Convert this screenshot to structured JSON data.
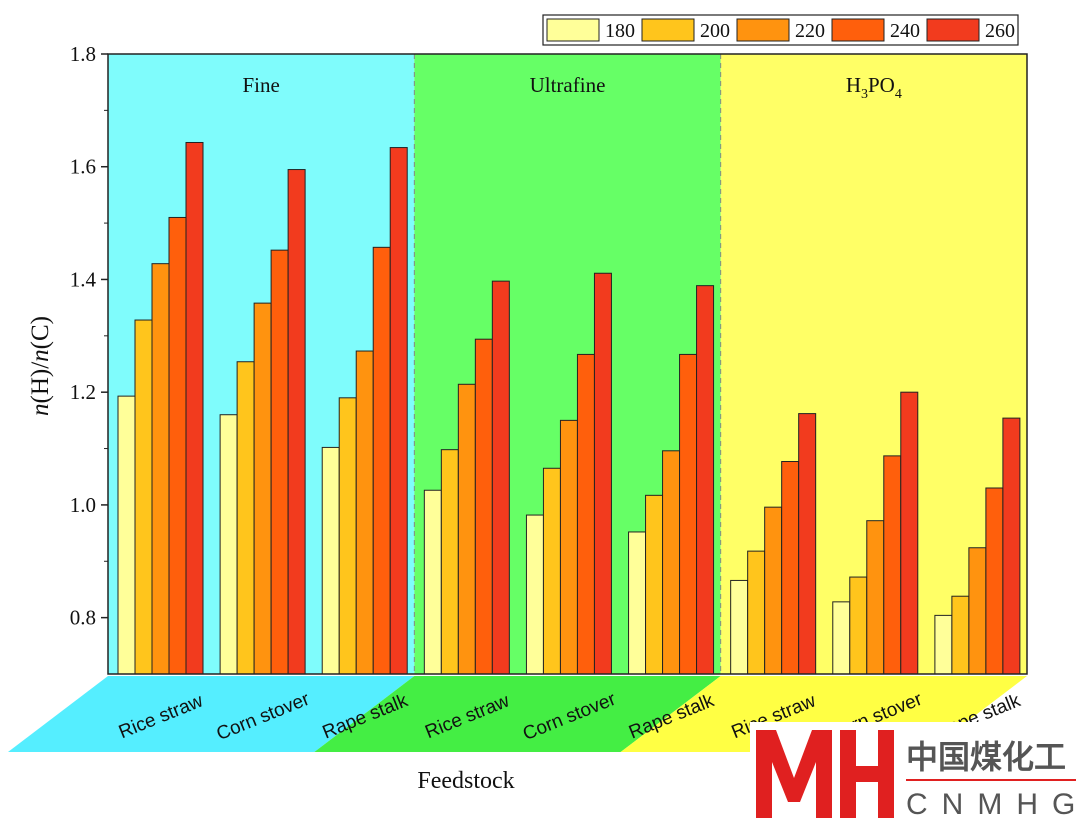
{
  "chart_data": {
    "type": "bar",
    "title": "",
    "xlabel": "Feedstock",
    "ylabel": "n(H)/n(C)",
    "ylabel_parts": {
      "n1": "n",
      "p1": "(H)/",
      "n2": "n",
      "p2": "(C)"
    },
    "ylim": [
      0.7,
      1.8
    ],
    "yticks": [
      "0.8",
      "1.0",
      "1.2",
      "1.4",
      "1.6",
      "1.8"
    ],
    "yticks_values": [
      0.8,
      1.0,
      1.2,
      1.4,
      1.6,
      1.8
    ],
    "legend_position": "top-right",
    "series": [
      {
        "name": "180",
        "color": "#ffff99"
      },
      {
        "name": "200",
        "color": "#ffc51c"
      },
      {
        "name": "220",
        "color": "#ff930f"
      },
      {
        "name": "240",
        "color": "#ff5f0c"
      },
      {
        "name": "260",
        "color": "#f23b1e"
      }
    ],
    "groups": [
      {
        "name": "Fine",
        "background": "#7ffcfc",
        "band": "#55eeff",
        "categories": [
          {
            "label": "Rice straw",
            "values": [
              1.193,
              1.328,
              1.428,
              1.51,
              1.643
            ]
          },
          {
            "label": "Corn stover",
            "values": [
              1.16,
              1.254,
              1.358,
              1.452,
              1.595
            ]
          },
          {
            "label": "Rape stalk",
            "values": [
              1.102,
              1.19,
              1.273,
              1.457,
              1.634
            ]
          }
        ]
      },
      {
        "name": "Ultrafine",
        "background": "#66ff66",
        "band": "#44ee44",
        "categories": [
          {
            "label": "Rice straw",
            "values": [
              1.026,
              1.098,
              1.214,
              1.294,
              1.397
            ]
          },
          {
            "label": "Corn stover",
            "values": [
              0.982,
              1.065,
              1.15,
              1.267,
              1.411
            ]
          },
          {
            "label": "Rape stalk",
            "values": [
              0.952,
              1.017,
              1.096,
              1.267,
              1.389
            ]
          }
        ]
      },
      {
        "name": "H3PO4",
        "name_parts": {
          "h": "H",
          "s1": "3",
          "po": "PO",
          "s2": "4"
        },
        "background": "#ffff66",
        "band": "#ffff44",
        "categories": [
          {
            "label": "Rice straw",
            "values": [
              0.866,
              0.918,
              0.996,
              1.077,
              1.162
            ]
          },
          {
            "label": "Corn stover",
            "values": [
              0.828,
              0.872,
              0.972,
              1.087,
              1.2
            ]
          },
          {
            "label": "Rape stalk",
            "values": [
              0.804,
              0.838,
              0.924,
              1.03,
              1.154
            ]
          }
        ]
      }
    ]
  },
  "watermark": {
    "cn": "中国煤化工",
    "en": "CNMHG",
    "colors": {
      "red": "#e02020",
      "gray": "#555555"
    }
  }
}
